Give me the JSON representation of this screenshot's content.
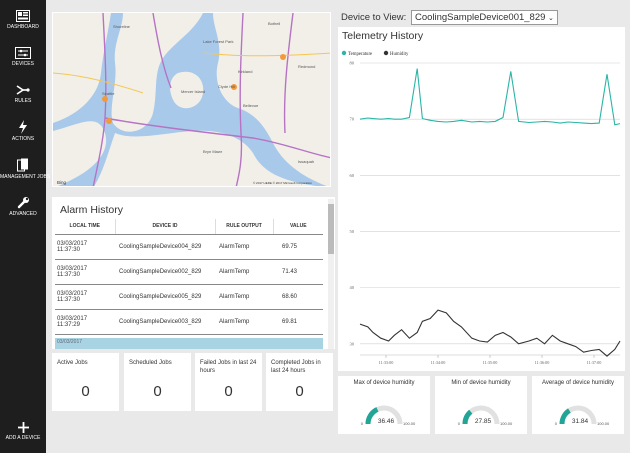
{
  "nav": {
    "dashboard": "DASHBOARD",
    "devices": "DEVICES",
    "rules": "RULES",
    "actions": "ACTIONS",
    "management_jobs": "MANAGEMENT JOBS",
    "advanced": "ADVANCED",
    "add_device": "ADD A DEVICE"
  },
  "map": {
    "places": [
      "Seattle",
      "Bellevue",
      "Kirkland",
      "Redmond",
      "Bothell",
      "Shoreline",
      "Mercer Island",
      "Issaquah",
      "Bryn Mawr",
      "Lake Forest Park",
      "Clyde Hill"
    ],
    "provider": "Bing",
    "copyright": "© 2017 HERE © 2017 Microsoft Corporation"
  },
  "alarm": {
    "title": "Alarm History",
    "columns": [
      "LOCAL TIME",
      "DEVICE ID",
      "RULE OUTPUT",
      "VALUE"
    ],
    "rows": [
      {
        "date": "03/03/2017",
        "time": "11:37:30",
        "device": "CoolingSampleDevice004_829",
        "rule": "AlarmTemp",
        "value": "69.75"
      },
      {
        "date": "03/03/2017",
        "time": "11:37:30",
        "device": "CoolingSampleDevice002_829",
        "rule": "AlarmTemp",
        "value": "71.43"
      },
      {
        "date": "03/03/2017",
        "time": "11:37:30",
        "device": "CoolingSampleDevice005_829",
        "rule": "AlarmTemp",
        "value": "68.60"
      },
      {
        "date": "03/03/2017",
        "time": "11:37:29",
        "device": "CoolingSampleDevice003_829",
        "rule": "AlarmTemp",
        "value": "69.81"
      }
    ],
    "partial_row": "03/03/2017"
  },
  "jobs": [
    {
      "label": "Active Jobs",
      "value": "0"
    },
    {
      "label": "Scheduled Jobs",
      "value": "0"
    },
    {
      "label": "Failed Jobs in last 24 hours",
      "value": "0"
    },
    {
      "label": "Completed Jobs in last 24 hours",
      "value": "0"
    }
  ],
  "device_view": {
    "label": "Device to View:",
    "selected": "CoolingSampleDevice001_829"
  },
  "telemetry": {
    "title": "Telemetry History",
    "colors": {
      "temperature": "#2ab5a6",
      "humidity": "#333333"
    }
  },
  "chart_data": {
    "type": "line",
    "title": "Telemetry History",
    "legend": "top-left",
    "grid": true,
    "ylim": [
      28,
      80
    ],
    "y_ticks": [
      "80",
      "70",
      "60",
      "50",
      "40",
      "30"
    ],
    "x_ticks": [
      "11:33:00",
      "11:34:00",
      "11:35:00",
      "11:36:00",
      "11:37:00"
    ],
    "x_tick_positions": [
      0.5,
      1.5,
      2.5,
      3.5,
      4.5
    ],
    "xlim": [
      0,
      5
    ],
    "x": [
      0,
      0.15,
      0.25,
      0.4,
      0.55,
      0.66,
      0.8,
      0.95,
      1.1,
      1.2,
      1.35,
      1.5,
      1.66,
      1.8,
      1.95,
      2.15,
      2.3,
      2.45,
      2.6,
      2.75,
      2.9,
      3.05,
      3.25,
      3.4,
      3.55,
      3.7,
      3.85,
      4.0,
      4.15,
      4.3,
      4.45,
      4.6,
      4.75,
      4.9,
      5.0
    ],
    "series": [
      {
        "name": "Temperature",
        "color": "#2ab5a6",
        "values": [
          70.0,
          70.2,
          70.1,
          70.0,
          70.1,
          70.0,
          70.0,
          70.3,
          79.0,
          70.1,
          69.8,
          69.6,
          69.5,
          69.6,
          69.8,
          69.5,
          69.6,
          69.5,
          69.6,
          70.3,
          78.5,
          69.6,
          69.4,
          69.5,
          69.6,
          69.5,
          69.3,
          69.5,
          69.4,
          69.3,
          69.2,
          69.3,
          78.0,
          69.0,
          69.2
        ]
      },
      {
        "name": "Humidity",
        "color": "#333333",
        "values": [
          33.5,
          33.0,
          32.0,
          31.0,
          30.5,
          31.5,
          32.5,
          31.0,
          32.0,
          34.0,
          34.5,
          36.0,
          35.5,
          34.0,
          33.0,
          31.0,
          30.5,
          30.3,
          31.5,
          32.0,
          31.2,
          30.0,
          30.5,
          31.0,
          30.0,
          31.5,
          30.5,
          30.0,
          29.5,
          28.5,
          28.8,
          29.0,
          27.8,
          29.0,
          30.5
        ]
      }
    ]
  },
  "gauges": [
    {
      "label": "Max of device humidity",
      "value": "36.46",
      "fraction": 0.3646,
      "min": "0",
      "max": "100.00"
    },
    {
      "label": "Min of device humidity",
      "value": "27.85",
      "fraction": 0.2785,
      "min": "0",
      "max": "100.00"
    },
    {
      "label": "Average of device humidity",
      "value": "31.84",
      "fraction": 0.3184,
      "min": "0",
      "max": "100.00"
    }
  ]
}
